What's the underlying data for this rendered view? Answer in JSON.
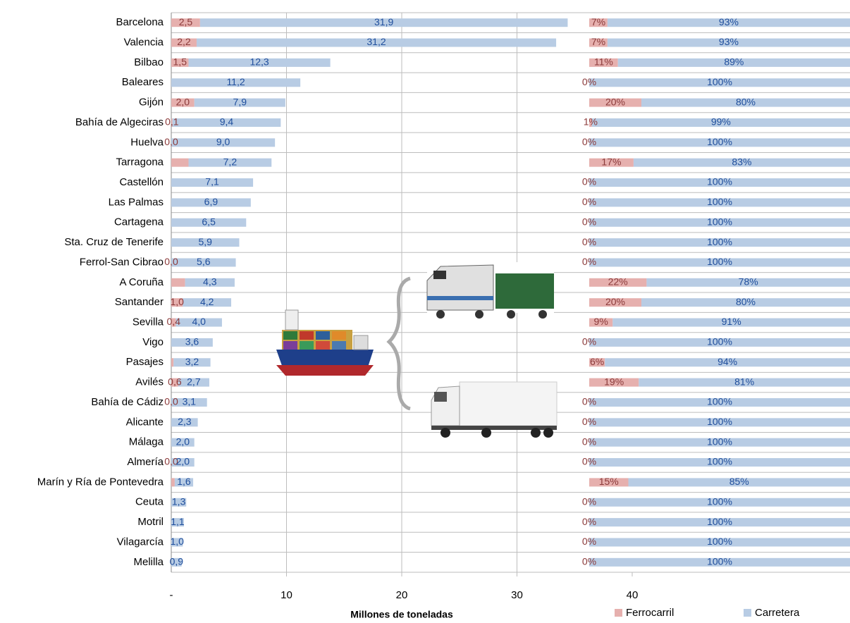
{
  "chart_data": [
    {
      "type": "bar",
      "orientation": "horizontal",
      "stacked": true,
      "xlabel": "Millones de toneladas",
      "categories": [
        "Barcelona",
        "Valencia",
        "Bilbao",
        "Baleares",
        "Gijón",
        "Bahía de Algeciras",
        "Huelva",
        "Tarragona",
        "Castellón",
        "Las Palmas",
        "Cartagena",
        "Sta. Cruz de Tenerife",
        "Ferrol-San Cibrao",
        "A Coruña",
        "Santander",
        "Sevilla",
        "Vigo",
        "Pasajes",
        "Avilés",
        "Bahía de Cádiz",
        "Alicante",
        "Málaga",
        "Almería",
        "Marín y Ría de Pontevedra",
        "Ceuta",
        "Motril",
        "Vilagarcía",
        "Melilla"
      ],
      "series": [
        {
          "name": "Ferrocarril",
          "color": "#e6b0ae",
          "label_color": "#8b3a3a",
          "values": [
            2.5,
            2.2,
            1.5,
            0,
            2.0,
            0.1,
            0.0,
            1.5,
            0,
            0,
            0,
            0,
            0.0,
            1.2,
            1.0,
            0.4,
            0,
            0.2,
            0.6,
            0.0,
            0,
            0,
            0.0,
            0.3,
            0,
            0,
            0,
            0
          ],
          "value_labels": [
            "2,5",
            "2,2",
            "1,5",
            null,
            "2,0",
            "0,1",
            "0,0",
            null,
            null,
            null,
            null,
            null,
            "0,0",
            null,
            "1,0",
            "0,4",
            null,
            null,
            "0,6",
            "0,0",
            null,
            null,
            "0,0",
            null,
            null,
            null,
            null,
            null
          ]
        },
        {
          "name": "Carretera",
          "color": "#b8cce4",
          "label_color": "#1f4e9c",
          "values": [
            31.9,
            31.2,
            12.3,
            11.2,
            7.9,
            9.4,
            9.0,
            7.2,
            7.1,
            6.9,
            6.5,
            5.9,
            5.6,
            4.3,
            4.2,
            4.0,
            3.6,
            3.2,
            2.7,
            3.1,
            2.3,
            2.0,
            2.0,
            1.6,
            1.3,
            1.1,
            1.0,
            0.9
          ],
          "value_labels": [
            "31,9",
            "31,2",
            "12,3",
            "11,2",
            "7,9",
            "9,4",
            "9,0",
            "7,2",
            "7,1",
            "6,9",
            "6,5",
            "5,9",
            "5,6",
            "4,3",
            "4,2",
            "4,0",
            "3,6",
            "3,2",
            "2,7",
            "3,1",
            "2,3",
            "2,0",
            "2,0",
            "1,6",
            "1,3",
            "1,1",
            "1,0",
            "0,9"
          ]
        }
      ],
      "xlim": [
        0,
        58.9
      ],
      "xticks": [
        {
          "value": 0,
          "label": "-"
        },
        10,
        20,
        30,
        40
      ],
      "grid": true
    },
    {
      "type": "bar",
      "orientation": "horizontal",
      "stacked": true,
      "series": [
        {
          "color": "#e6b0ae",
          "label_color": "#8b3a3a",
          "values": [
            7,
            7,
            11,
            0,
            20,
            1,
            0,
            17,
            0,
            0,
            0,
            0,
            0,
            22,
            20,
            9,
            0,
            6,
            19,
            0,
            0,
            0,
            0,
            15,
            0,
            0,
            0,
            0
          ],
          "value_labels": [
            "7%",
            "7%",
            "11%",
            "0%",
            "20%",
            "1%",
            "0%",
            "17%",
            "0%",
            "0%",
            "0%",
            "0%",
            "0%",
            "22%",
            "20%",
            "9%",
            "0%",
            "6%",
            "19%",
            "0%",
            "0%",
            "0%",
            "0%",
            "15%",
            "0%",
            "0%",
            "0%",
            "0%"
          ]
        },
        {
          "color": "#b8cce4",
          "label_color": "#1f4e9c",
          "values": [
            93,
            93,
            89,
            100,
            80,
            99,
            100,
            83,
            100,
            100,
            100,
            100,
            100,
            78,
            80,
            91,
            100,
            94,
            81,
            100,
            100,
            100,
            100,
            85,
            100,
            100,
            100,
            100
          ],
          "value_labels": [
            "93%",
            "93%",
            "89%",
            "100%",
            "80%",
            "99%",
            "100%",
            "83%",
            "100%",
            "100%",
            "100%",
            "100%",
            "100%",
            "78%",
            "80%",
            "91%",
            "100%",
            "94%",
            "81%",
            "100%",
            "100%",
            "100%",
            "100%",
            "85%",
            "100%",
            "100%",
            "100%",
            "100%"
          ]
        }
      ],
      "xlim": [
        0,
        100
      ]
    }
  ]
}
